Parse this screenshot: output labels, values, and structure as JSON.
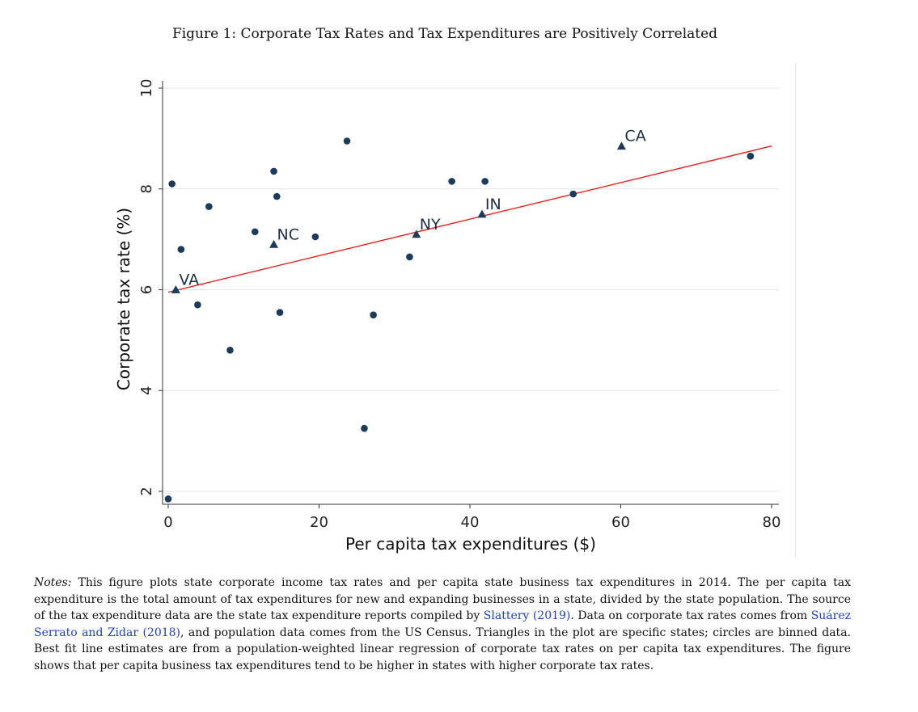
{
  "figure": {
    "title": "Figure 1: Corporate Tax Rates and Tax Expenditures are Positively Correlated"
  },
  "chart_data": {
    "type": "scatter",
    "xlabel": "Per capita tax expenditures ($)",
    "ylabel": "Corporate tax rate (%)",
    "xlim": [
      0,
      80
    ],
    "ylim": [
      2,
      10
    ],
    "xticks": [
      "0",
      "20",
      "40",
      "60",
      "80"
    ],
    "yticks": [
      "2",
      "4",
      "6",
      "8",
      "10"
    ],
    "grid": "horizontal",
    "series": [
      {
        "marker": "circle",
        "color": "#1b3a5c",
        "points": [
          {
            "x": 0.5,
            "y": 8.1
          },
          {
            "x": 1.7,
            "y": 6.8
          },
          {
            "x": 3.9,
            "y": 5.7
          },
          {
            "x": 5.4,
            "y": 7.65
          },
          {
            "x": 8.2,
            "y": 4.8
          },
          {
            "x": 11.5,
            "y": 7.15
          },
          {
            "x": 14.0,
            "y": 8.35
          },
          {
            "x": 14.4,
            "y": 7.85
          },
          {
            "x": 14.8,
            "y": 5.55
          },
          {
            "x": 19.5,
            "y": 7.05
          },
          {
            "x": 23.7,
            "y": 8.95
          },
          {
            "x": 26.0,
            "y": 3.25
          },
          {
            "x": 27.2,
            "y": 5.5
          },
          {
            "x": 32.0,
            "y": 6.65
          },
          {
            "x": 37.6,
            "y": 8.15
          },
          {
            "x": 42.0,
            "y": 8.15
          },
          {
            "x": 53.7,
            "y": 7.9
          },
          {
            "x": 77.2,
            "y": 8.65
          },
          {
            "x": 0.0,
            "y": 1.85
          }
        ]
      },
      {
        "marker": "triangle",
        "color": "#1b3a5c",
        "points": [
          {
            "x": 1.0,
            "y": 6.0,
            "label": "VA"
          },
          {
            "x": 14.0,
            "y": 6.9,
            "label": "NC"
          },
          {
            "x": 32.9,
            "y": 7.1,
            "label": "NY"
          },
          {
            "x": 41.6,
            "y": 7.5,
            "label": "IN"
          },
          {
            "x": 60.1,
            "y": 8.85,
            "label": "CA"
          }
        ]
      }
    ],
    "fit_line": {
      "color": "#e8201c",
      "x": [
        0,
        80
      ],
      "y": [
        5.95,
        8.85
      ]
    }
  },
  "notes": {
    "lead": "Notes:",
    "part1": " This figure plots state corporate income tax rates and per capita state business tax expenditures in 2014. The per capita tax expenditure is the total amount of tax expenditures for new and expanding businesses in a state, divided by the state population. The source of the tax expenditure data are the state tax expenditure reports compiled by ",
    "cite1": "Slattery (2019)",
    "part2": ". Data on corporate tax rates comes from ",
    "cite2": "Suárez Serrato and Zidar (2018)",
    "part3": ", and population data comes from the US Census. Triangles in the plot are specific states; circles are binned data. Best fit line estimates are from a population-weighted linear regression of corporate tax rates on per capita tax expenditures. The figure shows that per capita business tax expenditures tend to be higher in states with higher corporate tax rates."
  }
}
